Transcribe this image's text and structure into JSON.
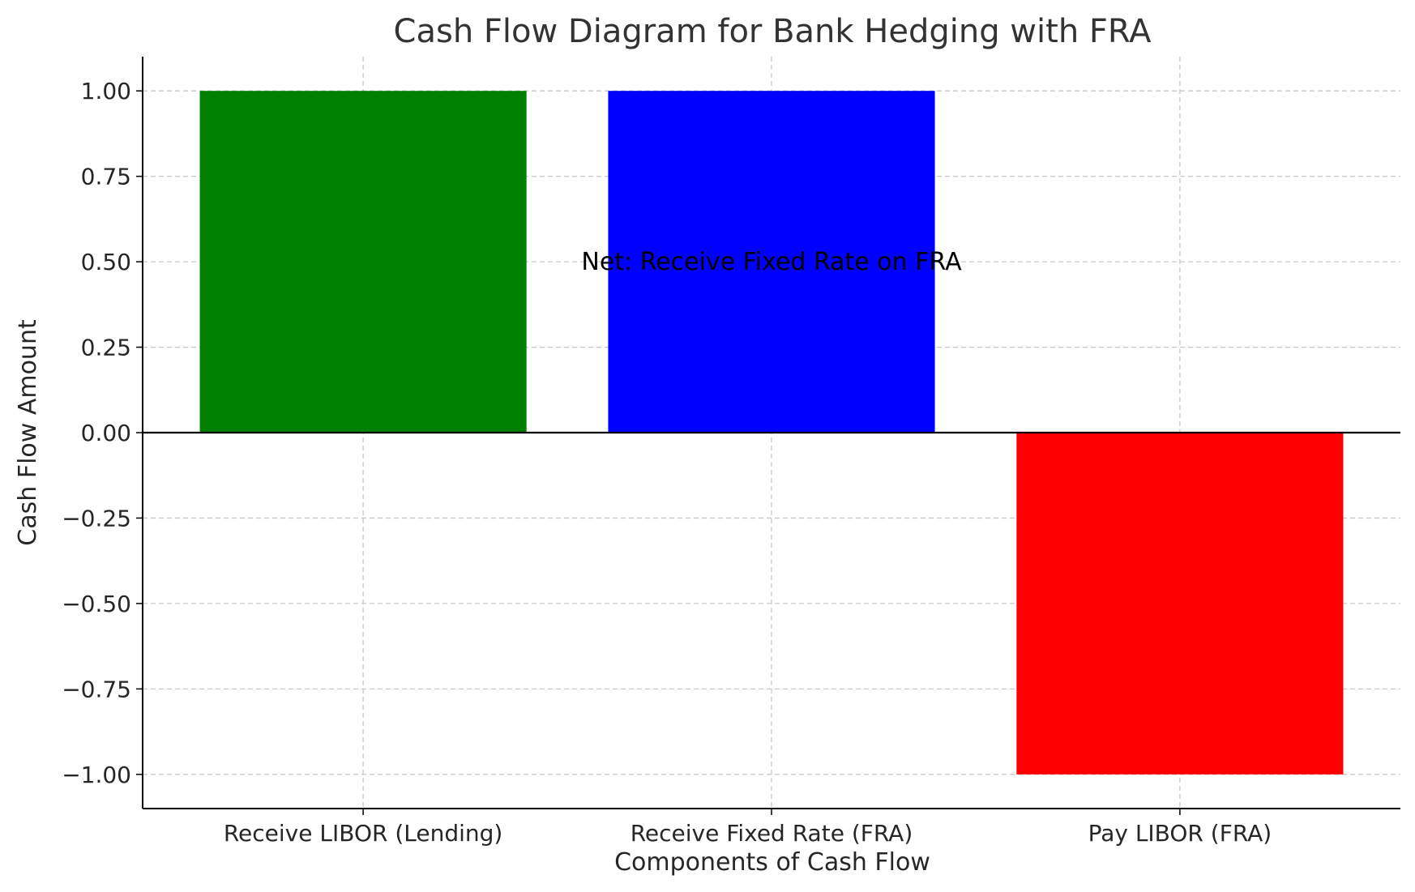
{
  "chart_data": {
    "type": "bar",
    "title": "Cash Flow Diagram for Bank Hedging with FRA",
    "xlabel": "Components of Cash Flow",
    "ylabel": "Cash Flow Amount",
    "categories": [
      "Receive LIBOR (Lending)",
      "Receive Fixed Rate (FRA)",
      "Pay LIBOR (FRA)"
    ],
    "values": [
      1,
      1,
      -1
    ],
    "colors": [
      "#008000",
      "#0000ff",
      "#ff0000"
    ],
    "ylim": [
      -1.1,
      1.1
    ],
    "yticks": [
      -1.0,
      -0.75,
      -0.5,
      -0.25,
      0.0,
      0.25,
      0.5,
      0.75,
      1.0
    ],
    "ytick_labels": [
      "−1.00",
      "−0.75",
      "−0.50",
      "−0.25",
      "0.00",
      "0.25",
      "0.50",
      "0.75",
      "1.00"
    ],
    "grid": true,
    "annotation": {
      "text": "Net: Receive Fixed Rate on FRA",
      "x": 1,
      "y": 0.5
    }
  }
}
